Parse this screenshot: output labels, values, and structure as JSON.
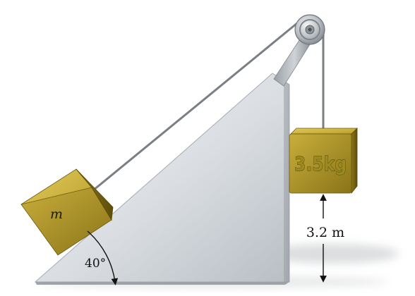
{
  "diagram": {
    "incline_angle_label": "40°",
    "hanging_mass_label": "3.5kg",
    "incline_block_label": "m",
    "height_label": "3.2 m"
  },
  "colors": {
    "block_gold": "#b49a2a",
    "block_dark": "#6e5c10",
    "incline_silver": "#dfe2e6",
    "rope": "#7a7f86"
  }
}
